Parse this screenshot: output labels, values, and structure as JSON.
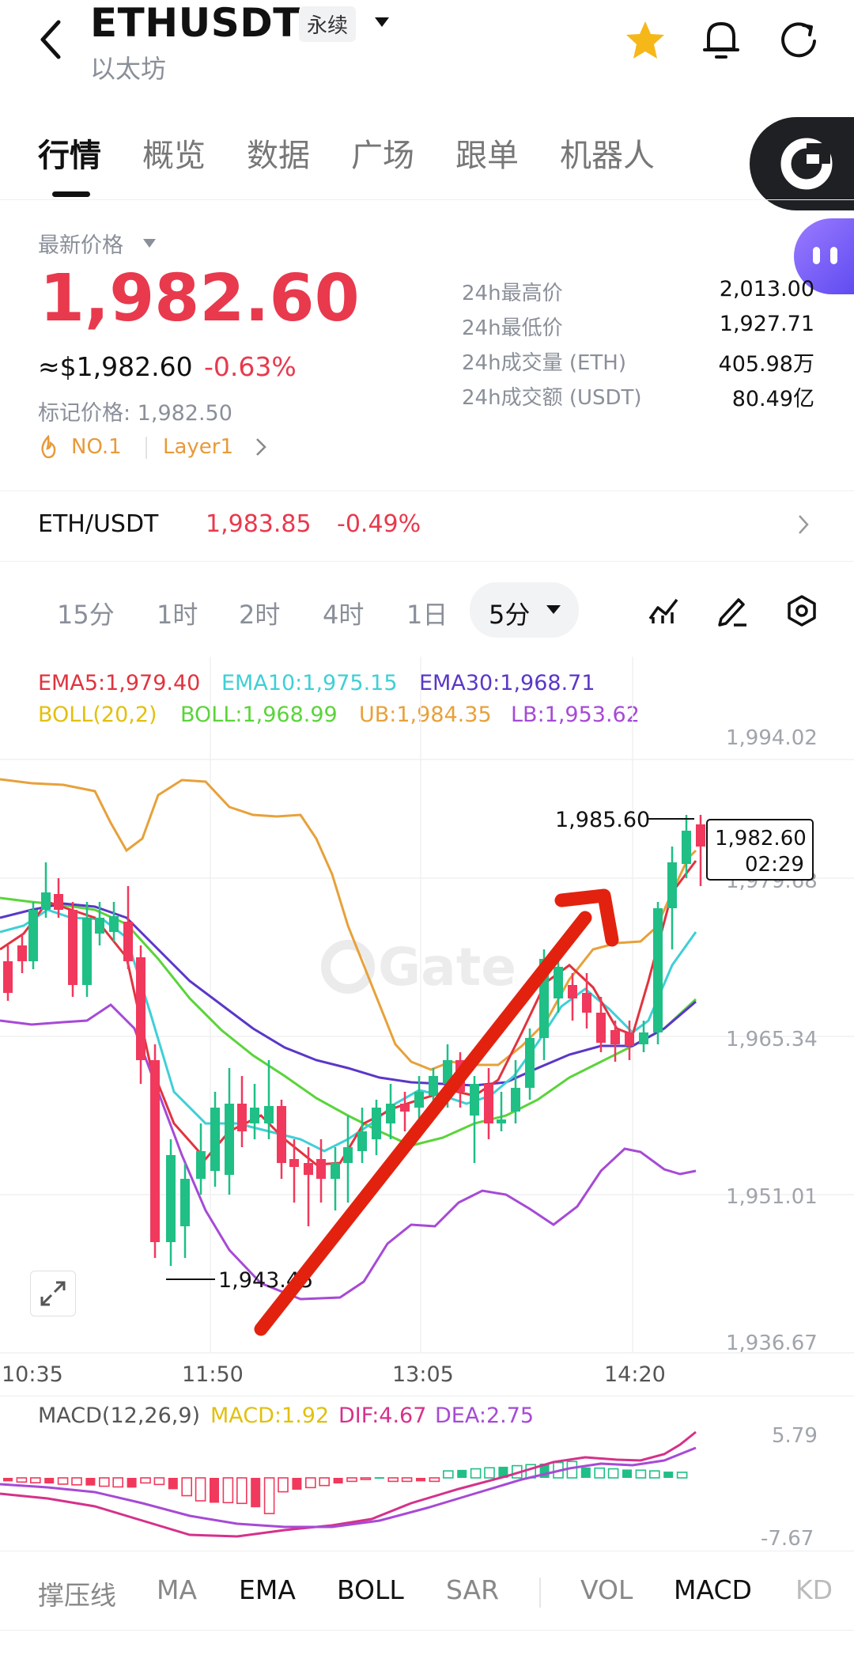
{
  "header": {
    "symbol": "ETHUSDT",
    "contract_tag": "永续",
    "subtitle": "以太坊",
    "icons": [
      "back-arrow-icon",
      "star-icon",
      "bell-icon",
      "refresh-icon"
    ]
  },
  "tabs": [
    "行情",
    "概览",
    "数据",
    "广场",
    "跟单",
    "机器人"
  ],
  "price": {
    "label": "最新价格",
    "last": "1,982.60",
    "usd": "≈$1,982.60",
    "change": "-0.63%",
    "mark": "标记价格: 1,982.50",
    "rank": "NO.1",
    "category": "Layer1"
  },
  "stats": [
    {
      "label": "24h最高价",
      "value": "2,013.00"
    },
    {
      "label": "24h最低价",
      "value": "1,927.71"
    },
    {
      "label": "24h成交量 (ETH)",
      "value": "405.98万"
    },
    {
      "label": "24h成交额 (USDT)",
      "value": "80.49亿"
    }
  ],
  "spot": {
    "pair": "ETH/USDT",
    "price": "1,983.85",
    "change": "-0.49%"
  },
  "timeframes": [
    "15分",
    "1时",
    "2时",
    "4时",
    "1日"
  ],
  "active_timeframe": "5分",
  "indicators": {
    "ema5": "EMA5:1,979.40",
    "ema10": "EMA10:1,975.15",
    "ema30": "EMA30:1,968.71",
    "boll": "BOLL(20,2)",
    "boll_mid": "BOLL:1,968.99",
    "ub": "UB:1,984.35",
    "lb": "LB:1,953.62"
  },
  "chart": {
    "y_ticks": [
      "1,994.02",
      "1,979.68",
      "1,965.34",
      "1,951.01",
      "1,936.67"
    ],
    "x_ticks": [
      "10:35",
      "11:50",
      "13:05",
      "14:20"
    ],
    "high_marker": "1,985.60",
    "low_marker": "1,943.45",
    "current_price": "1,982.60",
    "countdown": "02:29",
    "watermark": "Gate",
    "colors": {
      "up": "#1fbf86",
      "down": "#f0395c",
      "ema5": "#e0343f",
      "ema10": "#3fcfd6",
      "ema30": "#5a37c8",
      "boll": "#e7a13a",
      "boll_mid": "#5ad43a",
      "lb": "#a64ad6"
    }
  },
  "macd": {
    "label": "MACD(12,26,9)",
    "macd": "MACD:1.92",
    "dif": "DIF:4.67",
    "dea": "DEA:2.75",
    "top": "5.79",
    "bottom": "-7.67"
  },
  "bottom_bar": [
    "撑压线",
    "MA",
    "EMA",
    "BOLL",
    "SAR",
    "VOL",
    "MACD",
    "KD"
  ],
  "bottom_active": [
    "EMA",
    "BOLL",
    "MACD"
  ]
}
